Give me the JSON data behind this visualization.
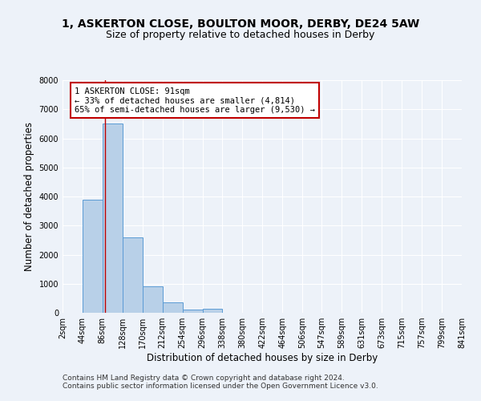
{
  "title": "1, ASKERTON CLOSE, BOULTON MOOR, DERBY, DE24 5AW",
  "subtitle": "Size of property relative to detached houses in Derby",
  "xlabel": "Distribution of detached houses by size in Derby",
  "ylabel": "Number of detached properties",
  "bin_edges": [
    2,
    44,
    86,
    128,
    170,
    212,
    254,
    296,
    338,
    380,
    422,
    464,
    506,
    547,
    589,
    631,
    673,
    715,
    757,
    799,
    841
  ],
  "bar_heights": [
    0,
    3900,
    6500,
    2600,
    900,
    350,
    120,
    130,
    0,
    0,
    0,
    0,
    0,
    0,
    0,
    0,
    0,
    0,
    0,
    0
  ],
  "bar_color": "#b8d0e8",
  "bar_edge_color": "#5b9bd5",
  "property_size": 91,
  "vline_color": "#c00000",
  "annotation_text": "1 ASKERTON CLOSE: 91sqm\n← 33% of detached houses are smaller (4,814)\n65% of semi-detached houses are larger (9,530) →",
  "annotation_box_color": "#ffffff",
  "annotation_box_edge_color": "#c00000",
  "ylim": [
    0,
    8000
  ],
  "yticks": [
    0,
    1000,
    2000,
    3000,
    4000,
    5000,
    6000,
    7000,
    8000
  ],
  "footer_line1": "Contains HM Land Registry data © Crown copyright and database right 2024.",
  "footer_line2": "Contains public sector information licensed under the Open Government Licence v3.0.",
  "background_color": "#edf2f9",
  "plot_bg_color": "#edf2f9",
  "grid_color": "#ffffff",
  "title_fontsize": 10,
  "subtitle_fontsize": 9,
  "axis_label_fontsize": 8.5,
  "tick_label_fontsize": 7,
  "annotation_fontsize": 7.5,
  "footer_fontsize": 6.5
}
